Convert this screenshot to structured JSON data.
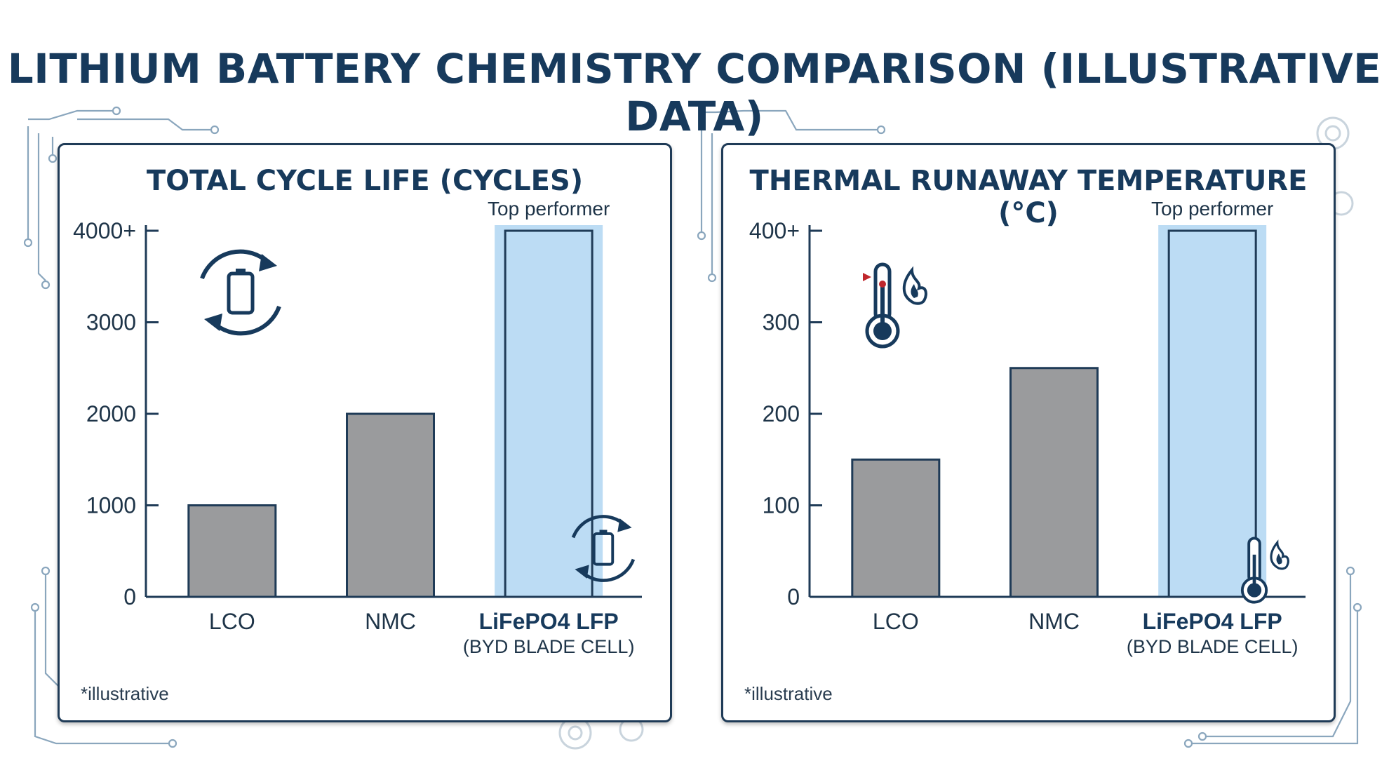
{
  "title": "LITHIUM BATTERY CHEMISTRY COMPARISON (ILLUSTRATIVE DATA)",
  "colors": {
    "bar_gray": "#9a9b9d",
    "bar_highlight": "#bcdcf4",
    "highlight_band": "#bcdcf4",
    "outline": "#1f3b57",
    "title": "#173a5c",
    "circuit": "#7b9bb3",
    "flame_red": "#c0272d"
  },
  "chart_data": [
    {
      "type": "bar",
      "title": "TOTAL CYCLE LIFE (CYCLES)",
      "categories": [
        "LCO",
        "NMC",
        "LiFePO4 LFP"
      ],
      "category_sublabels": [
        "",
        "",
        "(BYD BLADE CELL)"
      ],
      "values": [
        1000,
        2000,
        4000
      ],
      "yticks": [
        0,
        1000,
        2000,
        3000,
        4000
      ],
      "ytick_labels": [
        "0",
        "1000",
        "2000",
        "3000",
        "4000+"
      ],
      "ylim": [
        0,
        4000
      ],
      "highlight_index": 2,
      "highlight_label": "Top performer",
      "footnote": "*illustrative",
      "icon": "battery-cycle-icon",
      "grid": false
    },
    {
      "type": "bar",
      "title": "THERMAL RUNAWAY TEMPERATURE (°C)",
      "categories": [
        "LCO",
        "NMC",
        "LiFePO4 LFP"
      ],
      "category_sublabels": [
        "",
        "",
        "(BYD BLADE CELL)"
      ],
      "values": [
        150,
        250,
        400
      ],
      "yticks": [
        0,
        100,
        200,
        300,
        400
      ],
      "ytick_labels": [
        "0",
        "100",
        "200",
        "300",
        "400+"
      ],
      "ylim": [
        0,
        400
      ],
      "highlight_index": 2,
      "highlight_label": "Top performer",
      "footnote": "*illustrative",
      "icon": "thermometer-flame-icon",
      "grid": false
    }
  ]
}
